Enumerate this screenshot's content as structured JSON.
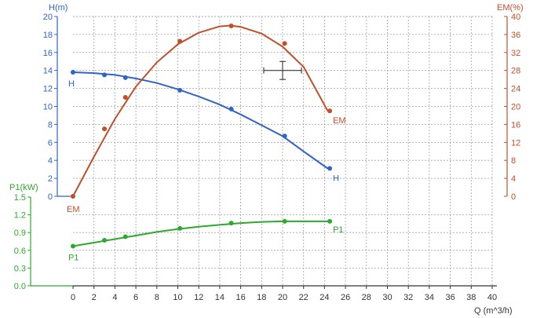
{
  "chart_data": {
    "type": "line",
    "colors": {
      "H": "#2f64c8",
      "EM": "#c0502a",
      "P1": "#2fa82f",
      "x_axis": "#333333",
      "grid": "#a0a0a0",
      "crosshair": "#222222"
    },
    "x_axis": {
      "label": "Q (m^3/h)",
      "range": [
        0,
        40
      ],
      "ticks": [
        0,
        2,
        4,
        6,
        8,
        10,
        12,
        14,
        16,
        18,
        20,
        22,
        24,
        26,
        28,
        30,
        32,
        34,
        36,
        38,
        40
      ]
    },
    "axes": {
      "H": {
        "label": "H(m)",
        "range": [
          0,
          20
        ],
        "ticks": [
          0,
          2,
          4,
          6,
          8,
          10,
          12,
          14,
          16,
          18,
          20
        ],
        "tick_labels": [
          "0",
          "2",
          "4",
          "6",
          "8",
          "10",
          "12",
          "14",
          "16",
          "18",
          "20"
        ],
        "side": "left"
      },
      "EM": {
        "label": "EM(%)",
        "range": [
          0,
          40
        ],
        "ticks": [
          0,
          4,
          8,
          12,
          16,
          20,
          24,
          28,
          32,
          36,
          40
        ],
        "tick_labels": [
          "0",
          "4",
          "8",
          "12",
          "16",
          "20",
          "24",
          "28",
          "32",
          "36",
          "40"
        ],
        "side": "right"
      },
      "P1": {
        "label": "P1(kW)",
        "range": [
          0,
          1.5
        ],
        "ticks": [
          0,
          0.3,
          0.6,
          0.9,
          1.2,
          1.5
        ],
        "tick_labels": [
          "0.0",
          "0.3",
          "0.6",
          "0.9",
          "1.2",
          "1.5"
        ],
        "side": "left-lower"
      }
    },
    "series": [
      {
        "name": "H",
        "axis": "H",
        "curve": [
          [
            0,
            13.8
          ],
          [
            2,
            13.7
          ],
          [
            4,
            13.5
          ],
          [
            6,
            13.1
          ],
          [
            8,
            12.6
          ],
          [
            10,
            11.9
          ],
          [
            12,
            11.1
          ],
          [
            14,
            10.2
          ],
          [
            16,
            9.1
          ],
          [
            18,
            7.9
          ],
          [
            20,
            6.7
          ],
          [
            22,
            5.0
          ],
          [
            24.3,
            3.1
          ]
        ],
        "markers": [
          [
            0,
            13.8
          ],
          [
            3,
            13.5
          ],
          [
            5,
            13.2
          ],
          [
            10.2,
            11.8
          ],
          [
            15.1,
            9.7
          ],
          [
            20.2,
            6.7
          ],
          [
            24.5,
            3.1
          ]
        ],
        "end_labels": [
          "H",
          "H"
        ]
      },
      {
        "name": "EM",
        "axis": "EM",
        "curve": [
          [
            0,
            0
          ],
          [
            2,
            8.8
          ],
          [
            4,
            17.2
          ],
          [
            6,
            24.4
          ],
          [
            8,
            29.8
          ],
          [
            10,
            33.8
          ],
          [
            12,
            36.4
          ],
          [
            14,
            37.8
          ],
          [
            15,
            38
          ],
          [
            16,
            37.7
          ],
          [
            18,
            36.2
          ],
          [
            20,
            33.3
          ],
          [
            22,
            28.8
          ],
          [
            24.3,
            19.0
          ]
        ],
        "markers": [
          [
            0,
            0
          ],
          [
            3,
            15
          ],
          [
            5,
            22
          ],
          [
            10.2,
            34.5
          ],
          [
            15.1,
            37.9
          ],
          [
            20.2,
            34.0
          ],
          [
            24.5,
            19.0
          ]
        ],
        "end_labels": [
          "EM",
          "EM"
        ]
      },
      {
        "name": "P1",
        "axis": "P1",
        "curve": [
          [
            0,
            0.67
          ],
          [
            2,
            0.73
          ],
          [
            4,
            0.79
          ],
          [
            6,
            0.85
          ],
          [
            8,
            0.91
          ],
          [
            10,
            0.96
          ],
          [
            12,
            1.0
          ],
          [
            14,
            1.03
          ],
          [
            16,
            1.06
          ],
          [
            18,
            1.08
          ],
          [
            20,
            1.09
          ],
          [
            22,
            1.09
          ],
          [
            24.3,
            1.09
          ]
        ],
        "markers": [
          [
            0,
            0.67
          ],
          [
            3,
            0.77
          ],
          [
            5,
            0.83
          ],
          [
            10.2,
            0.97
          ],
          [
            15.1,
            1.06
          ],
          [
            20.2,
            1.09
          ],
          [
            24.5,
            1.09
          ]
        ],
        "end_labels": [
          "P1",
          "P1"
        ]
      }
    ],
    "crosshair": {
      "x": 20,
      "y_H": 14,
      "half_width": 1.8,
      "half_height": 1
    },
    "grid": true
  }
}
